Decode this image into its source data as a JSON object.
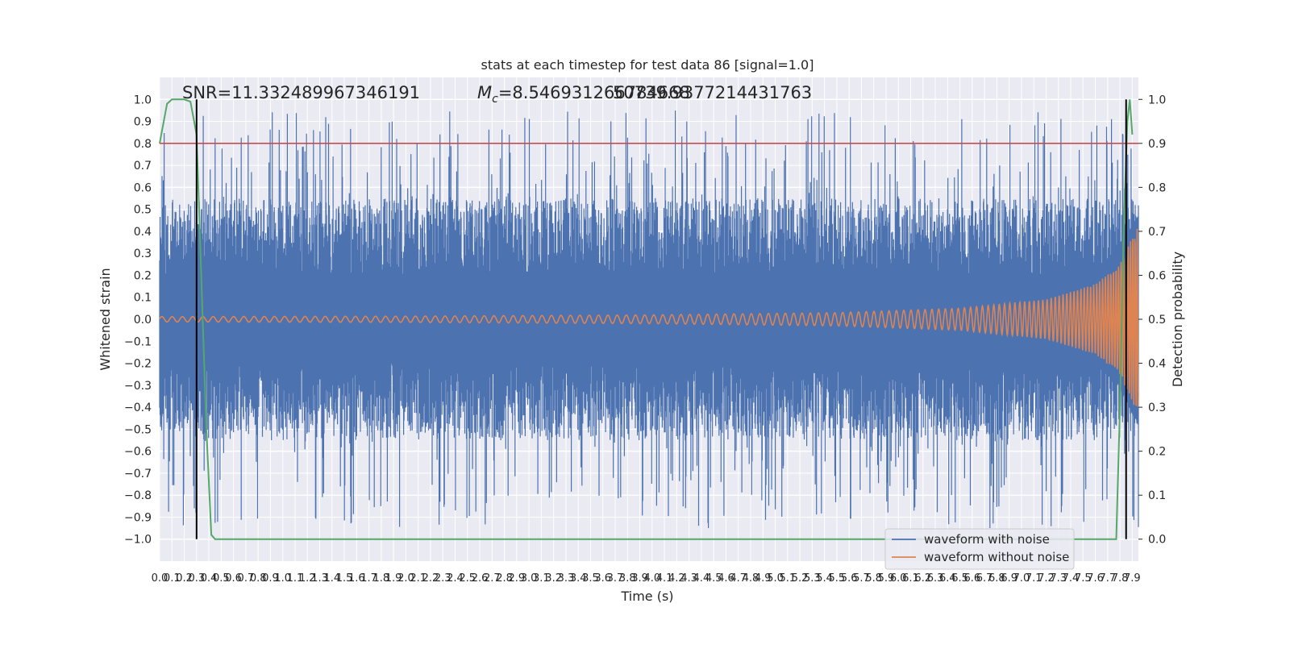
{
  "chart_data": {
    "type": "line",
    "title": "stats at each timestep for test data 86 [signal=1.0]",
    "xlabel": "Time (s)",
    "ylabel": "Whitened strain",
    "y2label": "Detection probability",
    "xlim": [
      0.0,
      7.95
    ],
    "ylim": [
      -1.1,
      1.1
    ],
    "y2lim": [
      -0.05,
      1.05
    ],
    "xticks_step": 0.1,
    "yticks": [
      -1.0,
      -0.9,
      -0.8,
      -0.7,
      -0.6,
      -0.5,
      -0.4,
      -0.3,
      -0.2,
      -0.1,
      0.0,
      0.1,
      0.2,
      0.3,
      0.4,
      0.5,
      0.6,
      0.7,
      0.8,
      0.9,
      1.0
    ],
    "y2ticks": [
      0.0,
      0.1,
      0.2,
      0.3,
      0.4,
      0.5,
      0.6,
      0.7,
      0.8,
      0.9,
      1.0
    ],
    "grid": true,
    "annotations": {
      "snr": "SNR=11.332489967346191",
      "mc_prefix": "M",
      "mc_sub": "c",
      "mc_value": "=8.546931266784668",
      "mc_overlap": "50739.9377214431763"
    },
    "threshold": {
      "axis": "right",
      "value": 0.9,
      "color": "#c44e52"
    },
    "vlines": [
      0.3,
      7.85
    ],
    "series": [
      {
        "name": "waveform with noise",
        "color": "#4c72b0",
        "axis": "left",
        "description": "noisy strain, roughly uniform noise amplitude ~0.5 with spikes up to ~0.97",
        "envelope_points": [
          [
            0.0,
            0.95
          ],
          [
            4.0,
            0.95
          ],
          [
            7.95,
            0.95
          ]
        ]
      },
      {
        "name": "waveform without noise",
        "color": "#dd8452",
        "axis": "left",
        "description": "chirp signal, amplitude ~0.01 rising to ~0.4 near 7.9 s",
        "amplitude_points": [
          [
            0.0,
            0.012
          ],
          [
            2.0,
            0.014
          ],
          [
            4.0,
            0.02
          ],
          [
            5.5,
            0.03
          ],
          [
            6.5,
            0.05
          ],
          [
            7.2,
            0.09
          ],
          [
            7.6,
            0.16
          ],
          [
            7.8,
            0.25
          ],
          [
            7.9,
            0.38
          ],
          [
            7.95,
            0.42
          ]
        ]
      },
      {
        "name": "detection probability",
        "color": "#55a868",
        "axis": "right",
        "x": [
          0.0,
          0.06,
          0.1,
          0.2,
          0.25,
          0.3,
          0.32,
          0.35,
          0.38,
          0.42,
          0.45,
          0.5,
          1.0,
          2.0,
          3.0,
          4.0,
          5.0,
          6.0,
          7.0,
          7.6,
          7.77,
          7.8,
          7.83,
          7.86,
          7.88,
          7.9
        ],
        "y": [
          0.9,
          0.99,
          1.0,
          1.0,
          0.995,
          0.92,
          0.75,
          0.5,
          0.25,
          0.01,
          0.0,
          0.0,
          0.0,
          0.0,
          0.0,
          0.0,
          0.0,
          0.0,
          0.0,
          0.0,
          0.0,
          0.3,
          0.7,
          0.95,
          1.0,
          0.92
        ]
      }
    ],
    "legend": {
      "placement": "lower-right",
      "entries": [
        {
          "label": "waveform with noise",
          "color": "#4c72b0"
        },
        {
          "label": "waveform without noise",
          "color": "#dd8452"
        }
      ]
    }
  }
}
